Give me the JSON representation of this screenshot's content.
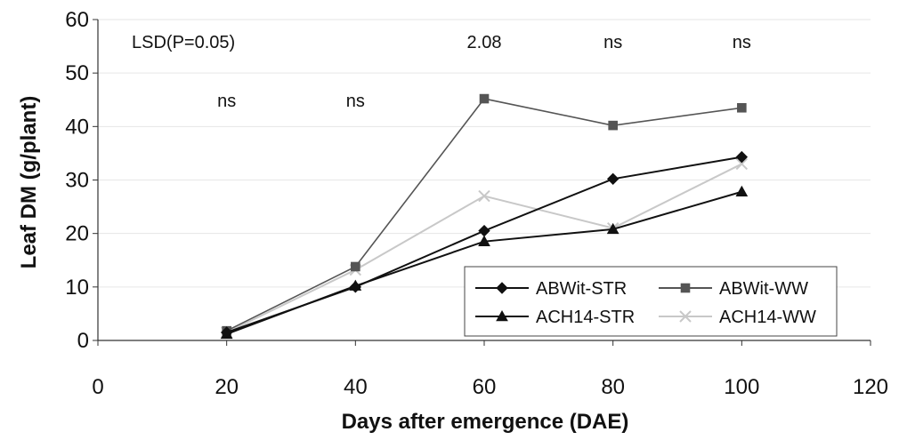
{
  "chart_data": {
    "type": "line",
    "title": "",
    "xlabel": "Days after emergence (DAE)",
    "ylabel": "Leaf DM (g/plant)",
    "xlim": [
      0,
      120
    ],
    "ylim": [
      0,
      60
    ],
    "xticks": [
      0,
      20,
      40,
      60,
      80,
      100,
      120
    ],
    "yticks": [
      0,
      10,
      20,
      30,
      40,
      50,
      60
    ],
    "grid": true,
    "legend_position": "bottom-right",
    "x": [
      20,
      40,
      60,
      80,
      100
    ],
    "series": [
      {
        "name": "ABWit-STR",
        "values": [
          1.5,
          10.0,
          20.5,
          30.2,
          34.3
        ],
        "color": "#111111",
        "marker": "diamond"
      },
      {
        "name": "ABWit-WW",
        "values": [
          1.8,
          13.8,
          45.2,
          40.2,
          43.5
        ],
        "color": "#555555",
        "marker": "square"
      },
      {
        "name": "ACH14-STR",
        "values": [
          1.2,
          10.2,
          18.5,
          20.8,
          27.8
        ],
        "color": "#111111",
        "marker": "triangle"
      },
      {
        "name": "ACH14-WW",
        "values": [
          1.5,
          13.2,
          27.0,
          21.0,
          33.0
        ],
        "color": "#c8c8c8",
        "marker": "x"
      }
    ],
    "annotations": {
      "lsd_label": "LSD(P=0.05)",
      "values": [
        {
          "x": 20,
          "text": "ns",
          "row": "lower"
        },
        {
          "x": 40,
          "text": "ns",
          "row": "lower"
        },
        {
          "x": 60,
          "text": "2.08",
          "row": "upper"
        },
        {
          "x": 80,
          "text": "ns",
          "row": "upper"
        },
        {
          "x": 100,
          "text": "ns",
          "row": "upper"
        }
      ]
    }
  }
}
